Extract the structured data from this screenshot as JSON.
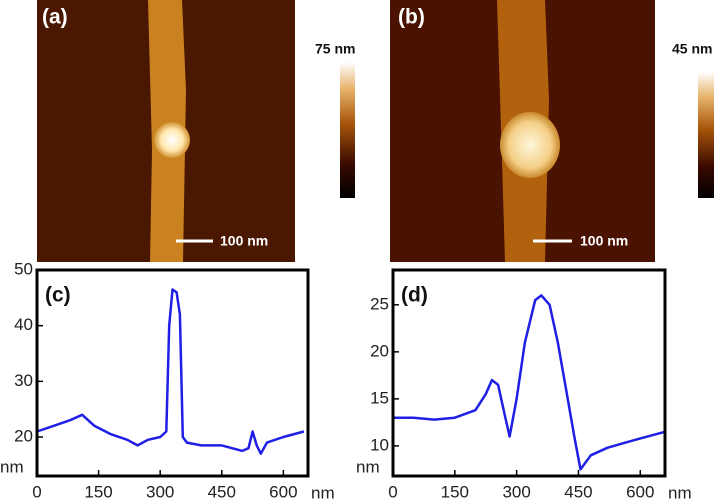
{
  "images": [
    {
      "label": "(a)",
      "colorbar_max": "75 nm",
      "scale_bar": "100 nm"
    },
    {
      "label": "(b)",
      "colorbar_max": "45 nm",
      "scale_bar": "100 nm"
    }
  ],
  "chart_data": [
    {
      "type": "line",
      "label": "(c)",
      "x_label": "nm",
      "y_label": "nm",
      "color": "#1f1fe6",
      "xlim": [
        0,
        660
      ],
      "ylim": [
        13,
        50
      ],
      "xticks": [
        0,
        150,
        300,
        450,
        600
      ],
      "yticks": [
        20,
        30,
        40,
        50
      ],
      "x": [
        0,
        40,
        80,
        110,
        140,
        180,
        220,
        245,
        270,
        300,
        315,
        322,
        330,
        340,
        348,
        355,
        365,
        400,
        450,
        500,
        515,
        525,
        535,
        545,
        560,
        600,
        650
      ],
      "values": [
        21,
        22,
        23,
        24,
        22,
        20.5,
        19.5,
        18.5,
        19.5,
        20,
        21,
        40,
        46.5,
        46,
        42,
        20,
        19,
        18.5,
        18.5,
        17.5,
        18,
        21,
        18.5,
        17,
        19,
        20,
        21
      ]
    },
    {
      "type": "line",
      "label": "(d)",
      "x_label": "nm",
      "y_label": "nm",
      "color": "#1f1fe6",
      "xlim": [
        0,
        660
      ],
      "ylim": [
        6.8,
        28.7
      ],
      "xticks": [
        0,
        150,
        300,
        450,
        600
      ],
      "yticks": [
        10,
        15,
        20,
        25
      ],
      "x": [
        0,
        50,
        100,
        150,
        200,
        225,
        240,
        255,
        270,
        283,
        300,
        320,
        345,
        360,
        380,
        400,
        420,
        440,
        455,
        480,
        520,
        560,
        600,
        660
      ],
      "values": [
        13,
        13,
        12.8,
        13,
        13.8,
        15.5,
        17,
        16.5,
        13.5,
        11,
        15,
        21,
        25.5,
        26,
        25,
        21,
        16,
        11,
        7.5,
        9,
        9.8,
        10.3,
        10.8,
        11.5
      ]
    }
  ]
}
